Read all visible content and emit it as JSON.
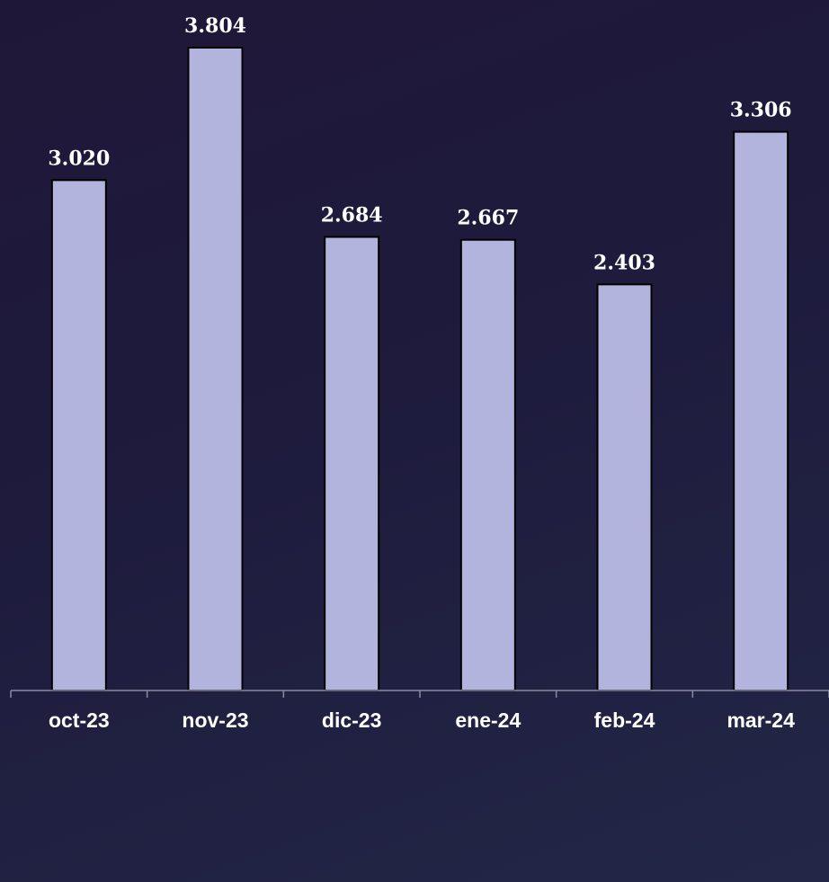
{
  "chart_data": {
    "type": "bar",
    "categories": [
      "oct-23",
      "nov-23",
      "dic-23",
      "ene-24",
      "feb-24",
      "mar-24"
    ],
    "values": [
      3020,
      3804,
      2684,
      2667,
      2403,
      3306
    ],
    "data_labels": [
      "3.020",
      "3.804",
      "2.684",
      "2.667",
      "2.403",
      "3.306"
    ],
    "title": "",
    "xlabel": "",
    "ylabel": "",
    "ylim": [
      0,
      4000
    ],
    "grid": false,
    "legend": "none",
    "colors": {
      "bar_fill": "#b3b4dd",
      "bar_stroke": "#000000",
      "label_text": "#ffffff",
      "axis": "#8a8aa3"
    }
  }
}
